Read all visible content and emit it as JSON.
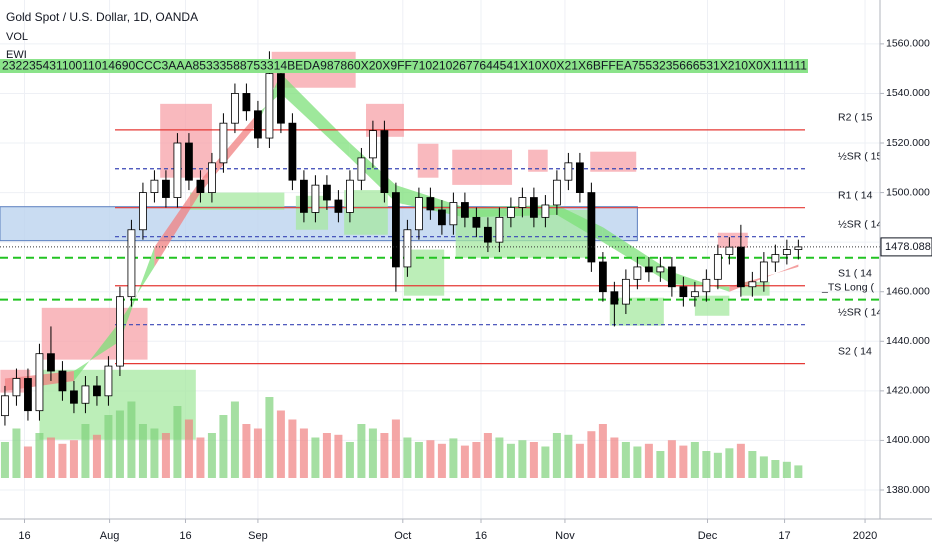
{
  "chart_data": {
    "type": "candlestick",
    "title": "Gold Spot / U.S. Dollar, 1D, OANDA",
    "indicator_labels": [
      "VOL",
      "EWI"
    ],
    "counter_row": "23223543110011014690CCC3AAA85333588753314BEDA987860X20X9FF7102102677644541X10X0X21X6BFFEA7553235666531X210X0X111111",
    "xlim": [
      -0.43,
      76.1
    ],
    "ylim": [
      1368.3,
      1577.7
    ],
    "yticks": [
      {
        "value": 1380,
        "label": "1380.000"
      },
      {
        "value": 1400,
        "label": "1400.000"
      },
      {
        "value": 1420,
        "label": "1420.000"
      },
      {
        "value": 1440,
        "label": "1440.000"
      },
      {
        "value": 1460,
        "label": "1460.000"
      },
      {
        "value": 1480,
        "label": "1480.000"
      },
      {
        "value": 1500,
        "label": "1500.000"
      },
      {
        "value": 1520,
        "label": "1520.000"
      },
      {
        "value": 1540,
        "label": "1540.000"
      },
      {
        "value": 1560,
        "label": "1560.000"
      }
    ],
    "xticks": [
      {
        "value": 1.7,
        "label": "16"
      },
      {
        "value": 9.1,
        "label": "Aug"
      },
      {
        "value": 15.7,
        "label": "16"
      },
      {
        "value": 22,
        "label": "Sep"
      },
      {
        "value": 34.6,
        "label": "Oct"
      },
      {
        "value": 41.4,
        "label": "16"
      },
      {
        "value": 48.7,
        "label": "Nov"
      },
      {
        "value": 61.1,
        "label": "Dec"
      },
      {
        "value": 67.8,
        "label": "17"
      },
      {
        "value": 74.8,
        "label": "2020"
      }
    ],
    "grid": true,
    "up_color": "#ffffff",
    "down_color": "#000000",
    "candles": {
      "open": [
        1410,
        1418,
        1425,
        1412,
        1435,
        1428,
        1420,
        1415,
        1422,
        1418,
        1430,
        1458,
        1485,
        1500,
        1505,
        1498,
        1520,
        1505,
        1500,
        1512,
        1528,
        1540,
        1533,
        1522,
        1548,
        1528,
        1505,
        1492,
        1503,
        1497,
        1492,
        1505,
        1514,
        1525,
        1500,
        1470,
        1485,
        1498,
        1493,
        1487,
        1496,
        1490,
        1486,
        1480,
        1490,
        1494,
        1498,
        1490,
        1495,
        1505,
        1512,
        1500,
        1472,
        1460,
        1455,
        1465,
        1470,
        1468,
        1470,
        1462,
        1458,
        1460,
        1465,
        1475,
        1478,
        1462,
        1464,
        1472,
        1475,
        1477
      ],
      "high": [
        1422,
        1429,
        1429,
        1439,
        1446,
        1432,
        1424,
        1426,
        1426,
        1434,
        1462,
        1489,
        1504,
        1509,
        1509,
        1524,
        1524,
        1509,
        1516,
        1532,
        1544,
        1544,
        1537,
        1557,
        1552,
        1532,
        1509,
        1507,
        1507,
        1501,
        1509,
        1518,
        1529,
        1529,
        1504,
        1489,
        1502,
        1502,
        1497,
        1500,
        1500,
        1494,
        1490,
        1494,
        1498,
        1502,
        1502,
        1499,
        1509,
        1516,
        1516,
        1504,
        1476,
        1464,
        1469,
        1474,
        1474,
        1474,
        1474,
        1466,
        1464,
        1469,
        1479,
        1482,
        1487,
        1468,
        1476,
        1479,
        1481,
        1481
      ],
      "low": [
        1406,
        1414,
        1408,
        1408,
        1424,
        1416,
        1411,
        1411,
        1414,
        1414,
        1426,
        1454,
        1481,
        1496,
        1494,
        1494,
        1501,
        1496,
        1496,
        1508,
        1524,
        1529,
        1518,
        1518,
        1524,
        1501,
        1488,
        1488,
        1493,
        1488,
        1488,
        1501,
        1510,
        1496,
        1460,
        1466,
        1481,
        1489,
        1483,
        1483,
        1486,
        1482,
        1476,
        1476,
        1486,
        1490,
        1486,
        1486,
        1491,
        1501,
        1496,
        1468,
        1456,
        1446,
        1451,
        1461,
        1464,
        1464,
        1458,
        1454,
        1454,
        1456,
        1461,
        1471,
        1458,
        1458,
        1460,
        1468,
        1471,
        1473
      ],
      "close": [
        1418,
        1425,
        1412,
        1435,
        1428,
        1420,
        1415,
        1422,
        1418,
        1430,
        1458,
        1485,
        1500,
        1505,
        1498,
        1520,
        1505,
        1500,
        1512,
        1528,
        1540,
        1533,
        1522,
        1548,
        1528,
        1505,
        1492,
        1503,
        1497,
        1492,
        1505,
        1514,
        1525,
        1500,
        1470,
        1485,
        1498,
        1493,
        1487,
        1496,
        1490,
        1486,
        1480,
        1490,
        1494,
        1498,
        1490,
        1495,
        1505,
        1512,
        1500,
        1472,
        1460,
        1455,
        1465,
        1470,
        1468,
        1470,
        1462,
        1458,
        1460,
        1465,
        1475,
        1478,
        1462,
        1464,
        1472,
        1475,
        1477,
        1478.088
      ]
    },
    "volume": [
      40,
      55,
      35,
      50,
      45,
      38,
      42,
      60,
      48,
      70,
      75,
      85,
      60,
      55,
      50,
      80,
      65,
      45,
      50,
      70,
      85,
      60,
      55,
      90,
      75,
      65,
      55,
      45,
      50,
      48,
      40,
      60,
      55,
      50,
      65,
      45,
      40,
      42,
      38,
      44,
      36,
      40,
      50,
      45,
      38,
      42,
      40,
      35,
      50,
      48,
      38,
      52,
      60,
      45,
      40,
      35,
      38,
      30,
      42,
      36,
      40,
      30,
      28,
      33,
      38,
      30,
      24,
      20,
      18,
      14
    ],
    "volume_lim": [
      0,
      100
    ],
    "volume_up_color": "#7fd17a",
    "volume_down_color": "#f08080",
    "ribbon": {
      "x": [
        0,
        6,
        10,
        13,
        17,
        22,
        24,
        30,
        34,
        40,
        48,
        52,
        58,
        63,
        69
      ],
      "fast": [
        1420,
        1424,
        1448,
        1470,
        1500,
        1528,
        1548,
        1520,
        1503,
        1494,
        1495,
        1486,
        1468,
        1460,
        1471
      ],
      "slow": [
        1425,
        1428,
        1440,
        1478,
        1505,
        1532,
        1540,
        1514,
        1496,
        1490,
        1491,
        1480,
        1463,
        1462,
        1470
      ],
      "up_color": "#7ee07a",
      "down_color": "#f08080"
    },
    "band": {
      "x": [
        -0.43,
        55
      ],
      "y": [
        1480.6,
        1494.3
      ],
      "color": "#bcd3ef",
      "border": "#5b7fbf"
    },
    "zones": [
      {
        "x": [
          -0.4,
          2.2
        ],
        "y": [
          1419.3,
          1428.5
        ],
        "color": "#f7a1a8"
      },
      {
        "x": [
          3.2,
          12.4
        ],
        "y": [
          1432.6,
          1453.5
        ],
        "color": "#f7a1a8"
      },
      {
        "x": [
          13.5,
          18
        ],
        "y": [
          1506,
          1535.8
        ],
        "color": "#f7a1a8"
      },
      {
        "x": [
          23.2,
          30.5
        ],
        "y": [
          1542.3,
          1556.8
        ],
        "color": "#f7a1a8"
      },
      {
        "x": [
          31.4,
          34.7
        ],
        "y": [
          1522.5,
          1535.8
        ],
        "color": "#f7a1a8"
      },
      {
        "x": [
          35.9,
          37.7
        ],
        "y": [
          1506,
          1519.7
        ],
        "color": "#f7a1a8"
      },
      {
        "x": [
          38.9,
          44.1
        ],
        "y": [
          1503.1,
          1517.3
        ],
        "color": "#f7a1a8"
      },
      {
        "x": [
          45.5,
          47.2
        ],
        "y": [
          1508.4,
          1517.3
        ],
        "color": "#f7a1a8"
      },
      {
        "x": [
          50.9,
          54.9
        ],
        "y": [
          1508.4,
          1516.5
        ],
        "color": "#f7a1a8"
      },
      {
        "x": [
          62,
          64.6
        ],
        "y": [
          1477.7,
          1483.8
        ],
        "color": "#f7a1a8"
      },
      {
        "x": [
          3,
          16.6
        ],
        "y": [
          1400.3,
          1428.5
        ],
        "color": "#a5e8a0"
      },
      {
        "x": [
          16.1,
          24.3
        ],
        "y": [
          1493,
          1500
        ],
        "color": "#a5e8a0"
      },
      {
        "x": [
          25.3,
          28.1
        ],
        "y": [
          1485,
          1498.7
        ],
        "color": "#a5e8a0"
      },
      {
        "x": [
          29.5,
          33.3
        ],
        "y": [
          1483,
          1501
        ],
        "color": "#a5e8a0"
      },
      {
        "x": [
          34.7,
          38.2
        ],
        "y": [
          1458.4,
          1477
        ],
        "color": "#a5e8a0"
      },
      {
        "x": [
          39.2,
          50.9
        ],
        "y": [
          1473.7,
          1493
        ],
        "color": "#a5e8a0"
      },
      {
        "x": [
          52.6,
          57.3
        ],
        "y": [
          1446.3,
          1457.6
        ],
        "color": "#a5e8a0"
      },
      {
        "x": [
          60,
          63
        ],
        "y": [
          1450.3,
          1458.4
        ],
        "color": "#a5e8a0"
      },
      {
        "x": [
          64,
          66.5
        ],
        "y": [
          1458.4,
          1464
        ],
        "color": "#a5e8a0"
      }
    ],
    "levels": [
      {
        "label": "R2 ( 15",
        "value": 1525.3,
        "color": "#e53935",
        "dashed": false
      },
      {
        "label": "½SR ( 15",
        "value": 1509.6,
        "color": "#3946b5",
        "dashed": true
      },
      {
        "label": "R1 ( 14",
        "value": 1493.9,
        "color": "#e53935",
        "dashed": false
      },
      {
        "label": "½SR ( 14",
        "value": 1482.2,
        "color": "#3946b5",
        "dashed": true
      },
      {
        "label": "S1 ( 14",
        "value": 1462.4,
        "color": "#e53935",
        "dashed": false
      },
      {
        "label": "½SR ( 14",
        "value": 1446.7,
        "color": "#3946b5",
        "dashed": true
      },
      {
        "label": "S2 ( 14",
        "value": 1431,
        "color": "#e53935",
        "dashed": false
      }
    ],
    "stop_lines": {
      "values": [
        1473.7,
        1456.8
      ],
      "color": "#22c322"
    },
    "ts_label": {
      "text": "_TS Long (",
      "value": 1461.6,
      "color": "#1a7a1a"
    }
  }
}
